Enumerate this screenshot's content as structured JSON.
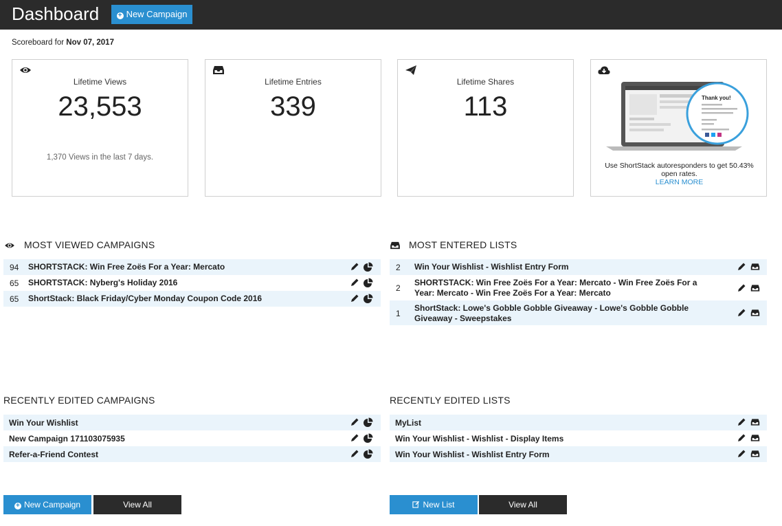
{
  "header": {
    "title": "Dashboard",
    "new_campaign_label": "New Campaign"
  },
  "scoreboard": {
    "prefix": "Scoreboard for",
    "date": "Nov 07, 2017"
  },
  "stats": {
    "views": {
      "label": "Lifetime Views",
      "value": "23,553",
      "sub": "1,370 Views in the last 7 days."
    },
    "entries": {
      "label": "Lifetime Entries",
      "value": "339"
    },
    "shares": {
      "label": "Lifetime Shares",
      "value": "113"
    }
  },
  "promo": {
    "text": "Use ShortStack autoresponders to get 50.43% open rates.",
    "link": "LEARN MORE",
    "mock_heading": "Thank you!"
  },
  "most_viewed": {
    "title": "MOST VIEWED CAMPAIGNS",
    "rows": [
      {
        "count": "94",
        "name": "SHORTSTACK: Win Free Zoës For a Year: Mercato"
      },
      {
        "count": "65",
        "name": "SHORTSTACK: Nyberg's Holiday 2016"
      },
      {
        "count": "65",
        "name": "ShortStack: Black Friday/Cyber Monday Coupon Code 2016"
      }
    ]
  },
  "most_entered": {
    "title": "MOST ENTERED LISTS",
    "rows": [
      {
        "count": "2",
        "name": "Win Your Wishlist - Wishlist Entry Form"
      },
      {
        "count": "2",
        "name": "SHORTSTACK: Win Free Zoës For a Year: Mercato - Win Free Zoës For a Year: Mercato - Win Free Zoës For a Year: Mercato"
      },
      {
        "count": "1",
        "name": "ShortStack: Lowe's Gobble Gobble Giveaway - Lowe's Gobble Gobble Giveaway - Sweepstakes"
      }
    ]
  },
  "recent_campaigns": {
    "title": "RECENTLY EDITED CAMPAIGNS",
    "rows": [
      {
        "name": "Win Your Wishlist"
      },
      {
        "name": "New Campaign 171103075935"
      },
      {
        "name": "Refer-a-Friend Contest"
      }
    ],
    "new_label": "New Campaign",
    "view_all_label": "View All"
  },
  "recent_lists": {
    "title": "RECENTLY EDITED LISTS",
    "rows": [
      {
        "name": "MyList"
      },
      {
        "name": "Win Your Wishlist - Wishlist - Display Items"
      },
      {
        "name": "Win Your Wishlist - Wishlist Entry Form"
      }
    ],
    "new_label": "New List",
    "view_all_label": "View All"
  },
  "colors": {
    "accent": "#2a8fd0",
    "topbar": "#2b2b2b",
    "row_shade": "#eaf4fb"
  }
}
